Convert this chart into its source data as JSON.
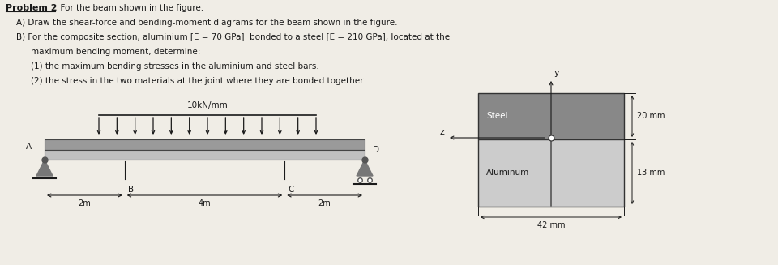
{
  "bg_color": "#f0ede6",
  "text_color": "#1a1a1a",
  "load_label": "10kN/mm",
  "dim_2m_left": "2m",
  "dim_4m": "4m",
  "dim_2m_right": "2m",
  "label_A": "A",
  "label_B": "B",
  "label_C": "C",
  "label_D": "D",
  "steel_label": "Steel",
  "alum_label": "Aluminum",
  "dim_42mm": "42 mm",
  "dim_20mm": "20 mm",
  "dim_13mm": "13 mm",
  "steel_color": "#888888",
  "alum_color": "#cccccc",
  "beam_color_top": "#9a9a9a",
  "beam_color_bot": "#c0c0c0",
  "support_color": "#777777"
}
